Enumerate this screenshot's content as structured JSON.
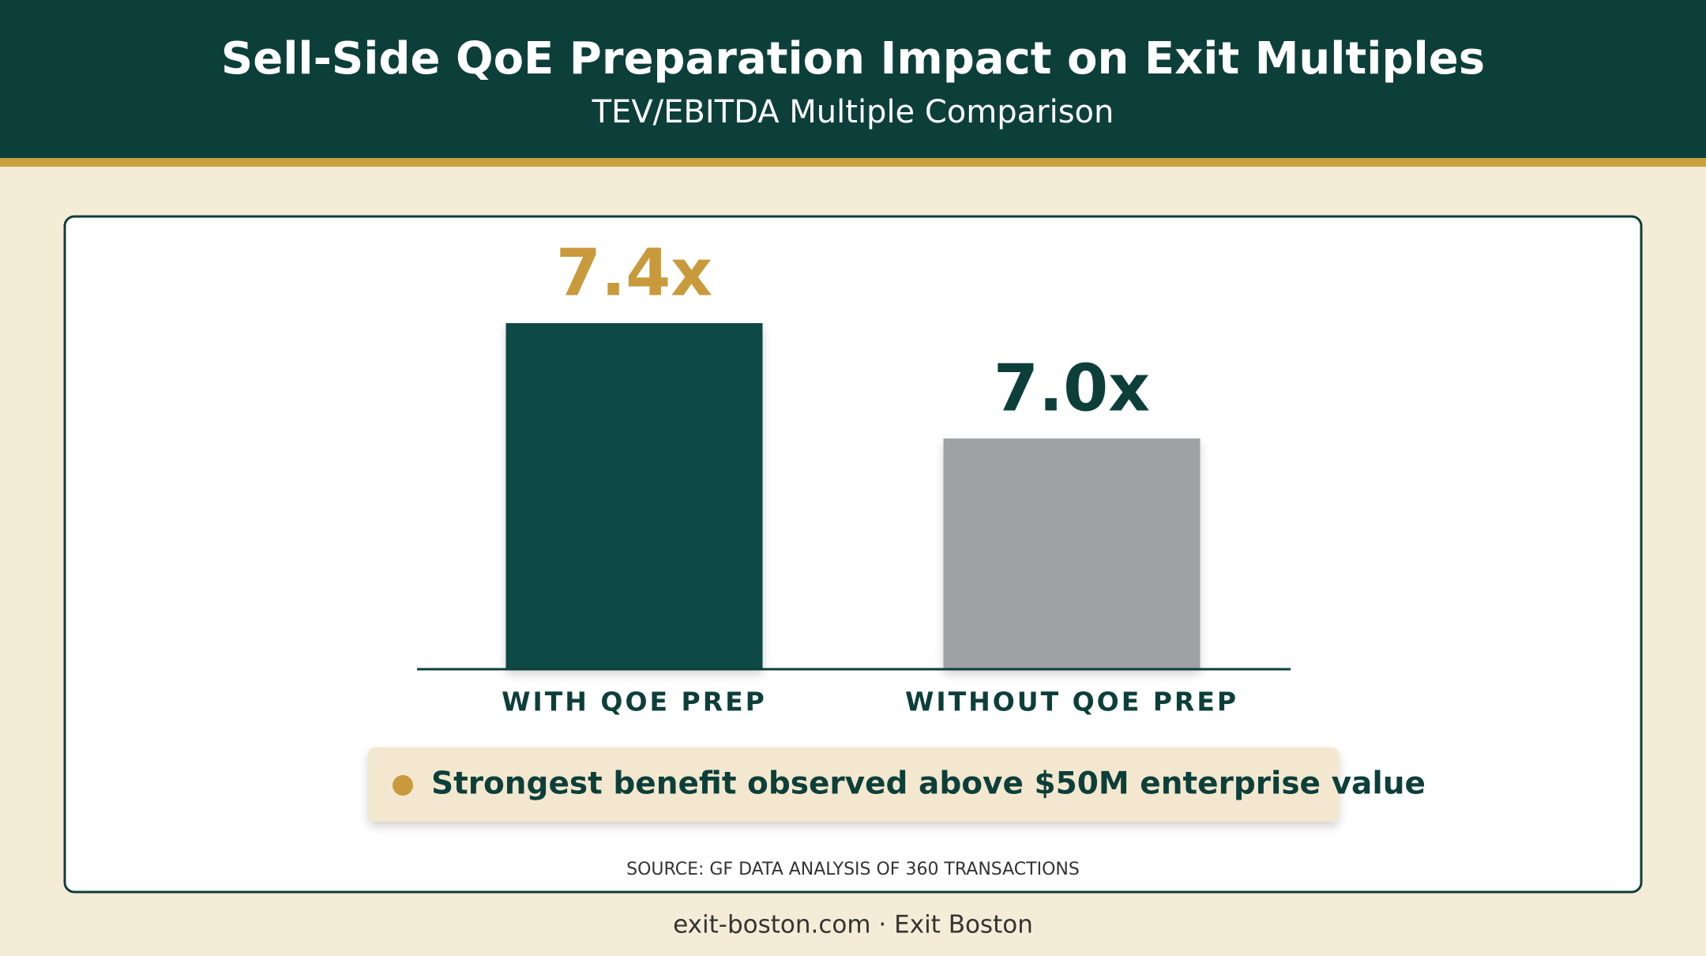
{
  "title": "Sell-Side QoE Preparation Impact on Exit Multiples",
  "subtitle": "TEV/EBITDA Multiple Comparison",
  "chart_data": {
    "type": "bar",
    "categories": [
      "WITH QOE PREP",
      "WITHOUT QOE PREP"
    ],
    "values": [
      7.4,
      7.0
    ],
    "value_labels": [
      "7.4x",
      "7.0x"
    ],
    "colors": [
      "#0d4a44",
      "#a0a1a5"
    ],
    "value_label_colors": [
      "#c99a3c",
      "#0d3f3a"
    ],
    "ylim": [
      6.2,
      7.6
    ]
  },
  "note": "Strongest benefit observed above $50M enterprise value",
  "source": "SOURCE: GF DATA ANALYSIS OF 360 TRANSACTIONS",
  "footer": "exit-boston.com · Exit Boston"
}
